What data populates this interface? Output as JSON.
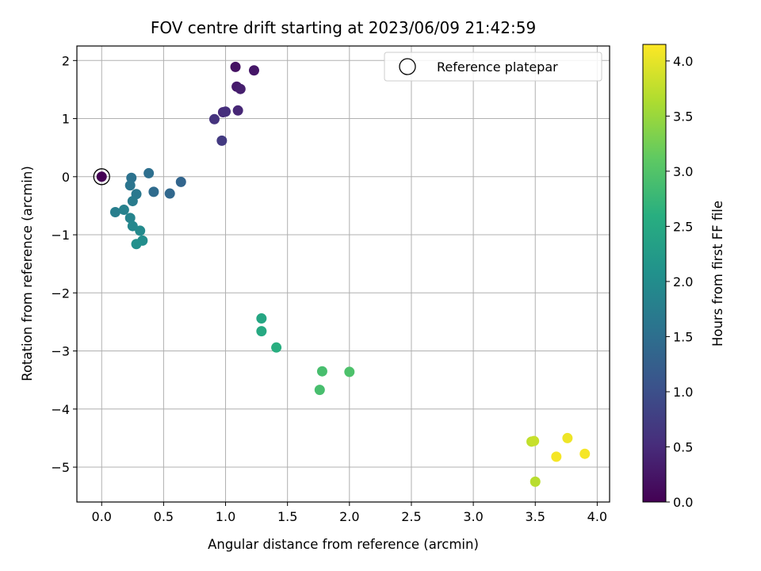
{
  "chart_data": {
    "type": "scatter",
    "title": "FOV centre drift starting at 2023/06/09 21:42:59",
    "xlabel": "Angular distance from reference (arcmin)",
    "ylabel": "Rotation from reference (arcmin)",
    "xlim": [
      -0.2,
      4.1
    ],
    "ylim": [
      -5.6,
      2.25
    ],
    "xticks": [
      0.0,
      0.5,
      1.0,
      1.5,
      2.0,
      2.5,
      3.0,
      3.5,
      4.0
    ],
    "xtick_labels": [
      "0.0",
      "0.5",
      "1.0",
      "1.5",
      "2.0",
      "2.5",
      "3.0",
      "3.5",
      "4.0"
    ],
    "yticks": [
      2,
      1,
      0,
      -1,
      -2,
      -3,
      -4,
      -5
    ],
    "ytick_labels": [
      "2",
      "1",
      "0",
      "−1",
      "−2",
      "−3",
      "−4",
      "−5"
    ],
    "grid": true,
    "legend": {
      "entries": [
        "Reference platepar"
      ],
      "position": "top-right"
    },
    "reference_point": {
      "x": 0.0,
      "y": 0.0
    },
    "colorbar": {
      "label": "Hours from first FF file",
      "colormap": "viridis",
      "range": [
        0.0,
        4.15
      ],
      "ticks": [
        0.0,
        0.5,
        1.0,
        1.5,
        2.0,
        2.5,
        3.0,
        3.5,
        4.0
      ],
      "tick_labels": [
        "0.0",
        "0.5",
        "1.0",
        "1.5",
        "2.0",
        "2.5",
        "3.0",
        "3.5",
        "4.0"
      ]
    },
    "points": [
      {
        "x": 0.0,
        "y": 0.0,
        "c": 0.0
      },
      {
        "x": 1.08,
        "y": 1.89,
        "c": 0.2
      },
      {
        "x": 1.23,
        "y": 1.83,
        "c": 0.25
      },
      {
        "x": 1.09,
        "y": 1.55,
        "c": 0.3
      },
      {
        "x": 1.12,
        "y": 1.51,
        "c": 0.35
      },
      {
        "x": 1.1,
        "y": 1.14,
        "c": 0.45
      },
      {
        "x": 0.98,
        "y": 1.11,
        "c": 0.5
      },
      {
        "x": 1.0,
        "y": 1.12,
        "c": 0.55
      },
      {
        "x": 0.91,
        "y": 0.99,
        "c": 0.6
      },
      {
        "x": 0.97,
        "y": 0.62,
        "c": 0.7
      },
      {
        "x": 0.64,
        "y": -0.09,
        "c": 1.35
      },
      {
        "x": 0.55,
        "y": -0.29,
        "c": 1.4
      },
      {
        "x": 0.42,
        "y": -0.26,
        "c": 1.45
      },
      {
        "x": 0.38,
        "y": 0.06,
        "c": 1.5
      },
      {
        "x": 0.24,
        "y": -0.02,
        "c": 1.55
      },
      {
        "x": 0.23,
        "y": -0.15,
        "c": 1.6
      },
      {
        "x": 0.28,
        "y": -0.3,
        "c": 1.65
      },
      {
        "x": 0.25,
        "y": -0.42,
        "c": 1.7
      },
      {
        "x": 0.11,
        "y": -0.61,
        "c": 1.75
      },
      {
        "x": 0.18,
        "y": -0.57,
        "c": 1.8
      },
      {
        "x": 0.23,
        "y": -0.71,
        "c": 1.85
      },
      {
        "x": 0.25,
        "y": -0.85,
        "c": 1.9
      },
      {
        "x": 0.31,
        "y": -0.93,
        "c": 1.95
      },
      {
        "x": 0.33,
        "y": -1.1,
        "c": 2.0
      },
      {
        "x": 0.28,
        "y": -1.16,
        "c": 2.05
      },
      {
        "x": 1.29,
        "y": -2.44,
        "c": 2.45
      },
      {
        "x": 1.29,
        "y": -2.66,
        "c": 2.5
      },
      {
        "x": 1.41,
        "y": -2.94,
        "c": 2.6
      },
      {
        "x": 1.78,
        "y": -3.35,
        "c": 2.9
      },
      {
        "x": 2.0,
        "y": -3.36,
        "c": 2.95
      },
      {
        "x": 1.76,
        "y": -3.67,
        "c": 2.9
      },
      {
        "x": 3.47,
        "y": -4.56,
        "c": 3.75
      },
      {
        "x": 3.49,
        "y": -4.55,
        "c": 3.8
      },
      {
        "x": 3.5,
        "y": -5.25,
        "c": 3.7
      },
      {
        "x": 3.76,
        "y": -4.5,
        "c": 4.05
      },
      {
        "x": 3.67,
        "y": -4.82,
        "c": 4.1
      },
      {
        "x": 3.9,
        "y": -4.77,
        "c": 4.1
      }
    ]
  }
}
